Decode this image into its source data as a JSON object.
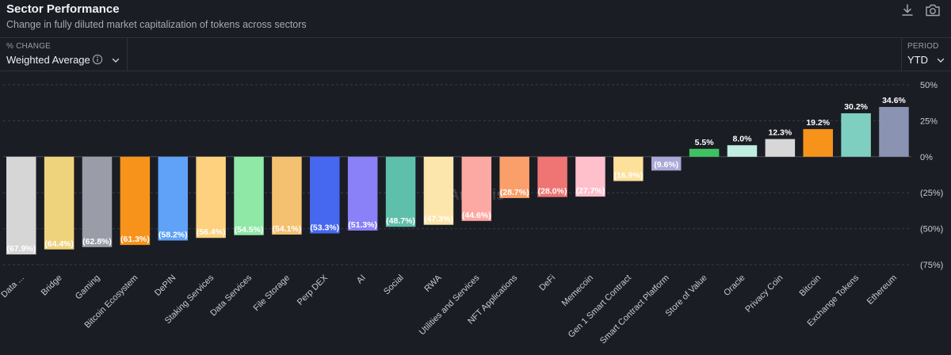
{
  "header": {
    "title": "Sector Performance",
    "subtitle": "Change in fully diluted market capitalization of tokens across sectors"
  },
  "toolbar": {
    "download_icon": "download-icon",
    "camera_icon": "camera-icon"
  },
  "controls": {
    "metric_label": "% CHANGE",
    "metric_value": "Weighted Average",
    "info_icon": "info-icon",
    "chevron_icon": "chevron-down-icon",
    "period_label": "PERIOD",
    "period_value": "YTD"
  },
  "watermark": "Artemis",
  "chart_data": {
    "type": "bar",
    "categories": [
      "Data ...",
      "Bridge",
      "Gaming",
      "Bitcoin Ecosystem",
      "DePIN",
      "Staking Services",
      "Data Services",
      "File Storage",
      "Perp DEX",
      "AI",
      "Social",
      "RWA",
      "Utilities and Services",
      "NFT Applications",
      "DeFi",
      "Memecoin",
      "Gen 1 Smart Contract",
      "Smart Contract Platform",
      "Store of Value",
      "Oracle",
      "Privacy Coin",
      "Bitcoin",
      "Exchange Tokens",
      "Ethereum"
    ],
    "values": [
      -67.9,
      -64.4,
      -62.8,
      -61.3,
      -58.2,
      -56.4,
      -54.5,
      -54.1,
      -53.3,
      -51.3,
      -48.7,
      -47.3,
      -44.6,
      -28.7,
      -28.0,
      -27.7,
      -16.9,
      -9.6,
      5.5,
      8.0,
      12.3,
      19.2,
      30.2,
      34.6
    ],
    "labels": [
      "(67.9%)",
      "(64.4%)",
      "(62.8%)",
      "(61.3%)",
      "(58.2%)",
      "(56.4%)",
      "(54.5%)",
      "(54.1%)",
      "(53.3%)",
      "(51.3%)",
      "(48.7%)",
      "(47.3%)",
      "(44.6%)",
      "(28.7%)",
      "(28.0%)",
      "(27.7%)",
      "(16.9%)",
      "(9.6%)",
      "5.5%",
      "8.0%",
      "12.3%",
      "19.2%",
      "30.2%",
      "34.6%"
    ],
    "colors": [
      "#d6d6d6",
      "#efd37c",
      "#9a9da8",
      "#f7931a",
      "#5fa2f7",
      "#fdd17e",
      "#90e8a6",
      "#f4c170",
      "#4667f0",
      "#8a80f8",
      "#5ebfab",
      "#fde6ac",
      "#fda9a3",
      "#fb9f6a",
      "#ef7474",
      "#ffbfcb",
      "#fde09a",
      "#a9a8d6",
      "#3fc162",
      "#bfeee0",
      "#d7d7d7",
      "#f7931a",
      "#7fcfc1",
      "#8b93b3"
    ],
    "yticks": [
      50,
      25,
      0,
      -25,
      -50,
      -75
    ],
    "ytick_labels": [
      "50%",
      "25%",
      "0%",
      "(25%)",
      "(50%)",
      "(75%)"
    ],
    "ylim": [
      -75,
      50
    ],
    "grid": true,
    "title": "Sector Performance",
    "xlabel": "",
    "ylabel": ""
  }
}
